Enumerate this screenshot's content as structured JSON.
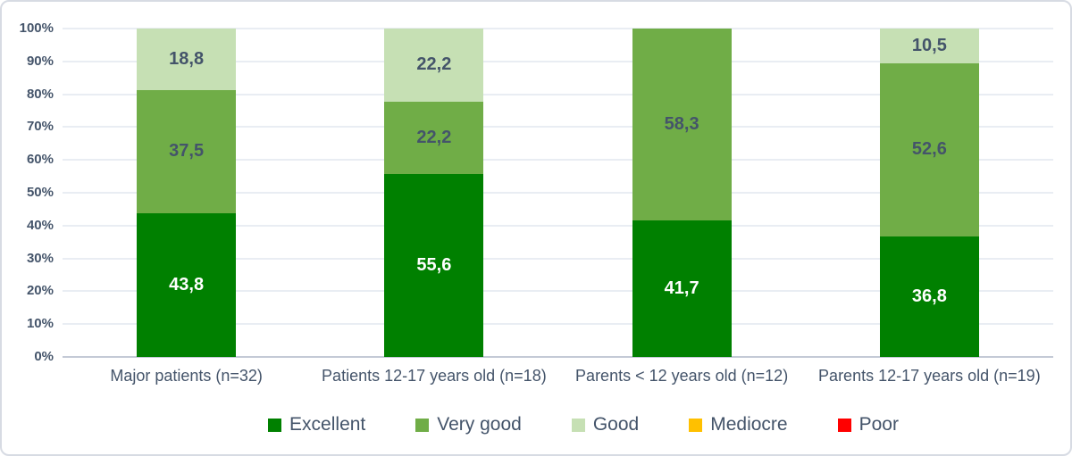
{
  "chart_data": {
    "type": "bar",
    "variant": "stacked-100-percent",
    "title": "",
    "categories": [
      "Major patients (n=32)",
      "Patients 12-17 years old (n=18)",
      "Parents < 12 years old (n=12)",
      "Parents 12-17 years old (n=19)"
    ],
    "series": [
      {
        "name": "Excellent",
        "color": "#008000",
        "label_color": "#FFFFFF",
        "values": [
          43.8,
          55.6,
          41.7,
          36.8
        ],
        "labels": [
          "43,8",
          "55,6",
          "41,7",
          "36,8"
        ]
      },
      {
        "name": "Very good",
        "color": "#70AD47",
        "label_color": "#44546A",
        "values": [
          37.5,
          22.2,
          58.3,
          52.6
        ],
        "labels": [
          "37,5",
          "22,2",
          "58,3",
          "52,6"
        ]
      },
      {
        "name": "Good",
        "color": "#C6E0B4",
        "label_color": "#44546A",
        "values": [
          18.8,
          22.2,
          0,
          10.5
        ],
        "labels": [
          "18,8",
          "22,2",
          "",
          "10,5"
        ]
      },
      {
        "name": "Mediocre",
        "color": "#FFC000",
        "label_color": "#44546A",
        "values": [
          0,
          0,
          0,
          0
        ],
        "labels": [
          "",
          "",
          "",
          ""
        ]
      },
      {
        "name": "Poor",
        "color": "#FF0000",
        "label_color": "#44546A",
        "values": [
          0,
          0,
          0,
          0
        ],
        "labels": [
          "",
          "",
          "",
          ""
        ]
      }
    ],
    "y_axis": {
      "ticks": [
        "0%",
        "10%",
        "20%",
        "30%",
        "40%",
        "50%",
        "60%",
        "70%",
        "80%",
        "90%",
        "100%"
      ],
      "min": 0,
      "max": 100
    },
    "grid": true,
    "legend_position": "bottom"
  },
  "style": {
    "text_color": "#44546A",
    "gridline_color": "#E9EDF3",
    "axis_line_color": "#C4CAD6",
    "border_color": "#D7DBE3",
    "background": "#FFFFFF"
  }
}
